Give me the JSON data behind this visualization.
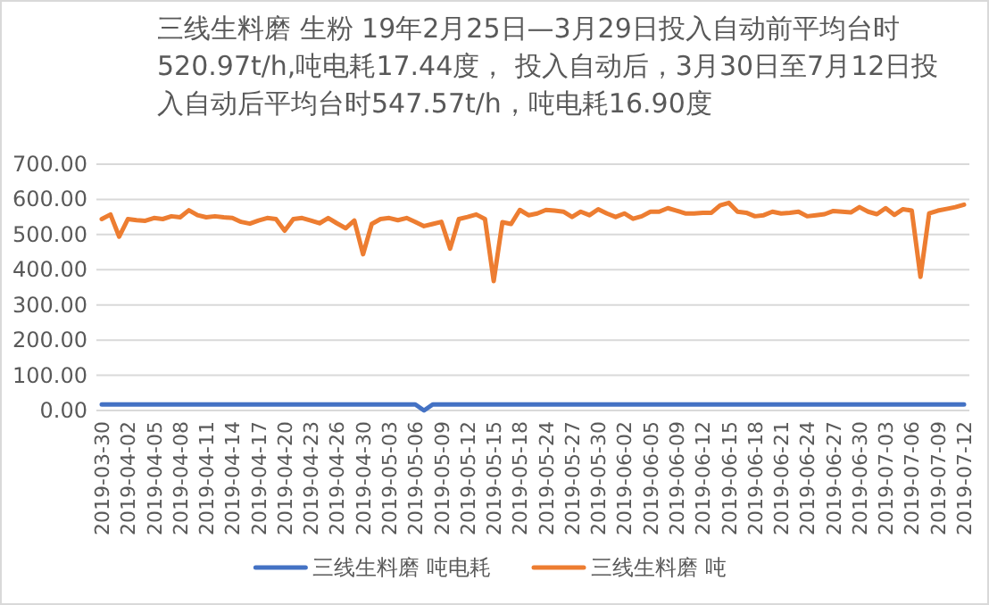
{
  "chart_data": {
    "type": "line",
    "title": "三线生料磨 生粉    19年2月25日—3月29日投入自动前平均台时520.97t/h,吨电耗17.44度，  投入自动后，3月30日至7月12日投入自动后平均台时547.57t/h，吨电耗16.90度",
    "categories": [
      "2019-03-30",
      null,
      null,
      "2019-04-02",
      null,
      null,
      "2019-04-05",
      null,
      null,
      "2019-04-08",
      null,
      null,
      "2019-04-11",
      null,
      null,
      "2019-04-14",
      null,
      null,
      "2019-04-17",
      null,
      null,
      "2019-04-20",
      null,
      null,
      "2019-04-23",
      null,
      null,
      "2019-04-26",
      null,
      null,
      "2019-04-30",
      null,
      null,
      "2019-05-03",
      null,
      null,
      "2019-05-06",
      null,
      null,
      "2019-05-09",
      null,
      null,
      "2019-05-12",
      null,
      null,
      "2019-05-15",
      null,
      null,
      "2019-05-18",
      null,
      null,
      "2019-05-24",
      null,
      null,
      "2019-05-27",
      null,
      null,
      "2019-05-30",
      null,
      null,
      "2019-06-02",
      null,
      null,
      "2019-06-05",
      null,
      null,
      "2019-06-09",
      null,
      null,
      "2019-06-12",
      null,
      null,
      "2019-06-15",
      null,
      null,
      "2019-06-18",
      null,
      null,
      "2019-06-21",
      null,
      null,
      "2019-06-24",
      null,
      null,
      "2019-06-27",
      null,
      null,
      "2019-06-30",
      null,
      null,
      "2019-07-03",
      null,
      null,
      "2019-07-06",
      null,
      null,
      "2019-07-09",
      null,
      null,
      "2019-07-12"
    ],
    "series": [
      {
        "name": "三线生料磨 吨电耗",
        "color": "#4472c4",
        "values": [
          17,
          17,
          17,
          17,
          17,
          17,
          17,
          17,
          17,
          17,
          17,
          17,
          17,
          17,
          17,
          17,
          17,
          17,
          17,
          17,
          17,
          17,
          17,
          17,
          17,
          17,
          17,
          17,
          17,
          17,
          17,
          17,
          17,
          17,
          17,
          17,
          17,
          0,
          17,
          17,
          17,
          17,
          17,
          17,
          17,
          17,
          17,
          17,
          17,
          17,
          17,
          17,
          17,
          17,
          17,
          17,
          17,
          17,
          17,
          17,
          17,
          17,
          17,
          17,
          17,
          17,
          17,
          17,
          17,
          17,
          17,
          17,
          17,
          17,
          17,
          17,
          17,
          17,
          17,
          17,
          17,
          17,
          17,
          17,
          17,
          17,
          17,
          17,
          17,
          17,
          17,
          17,
          17,
          17,
          17,
          17,
          17,
          17,
          17,
          17
        ]
      },
      {
        "name": "三线生料磨 吨",
        "color": "#ed7d31",
        "values": [
          544,
          557,
          494,
          544,
          541,
          539,
          547,
          544,
          552,
          549,
          569,
          555,
          549,
          552,
          549,
          547,
          536,
          531,
          540,
          547,
          544,
          511,
          544,
          547,
          540,
          532,
          547,
          532,
          518,
          540,
          444,
          530,
          544,
          547,
          541,
          547,
          536,
          524,
          530,
          536,
          460,
          544,
          550,
          557,
          544,
          368,
          535,
          530,
          570,
          555,
          560,
          570,
          568,
          565,
          550,
          565,
          555,
          572,
          560,
          550,
          560,
          545,
          552,
          565,
          565,
          575,
          568,
          560,
          560,
          562,
          562,
          583,
          590,
          565,
          562,
          552,
          555,
          565,
          560,
          562,
          565,
          552,
          555,
          558,
          567,
          565,
          563,
          578,
          565,
          558,
          575,
          556,
          572,
          568,
          380,
          560,
          568,
          573,
          578,
          585
        ]
      }
    ],
    "ylim": [
      0,
      700
    ],
    "yticks": [
      {
        "value": 0,
        "label": "0.00"
      },
      {
        "value": 100,
        "label": "100.00"
      },
      {
        "value": 200,
        "label": "200.00"
      },
      {
        "value": 300,
        "label": "300.00"
      },
      {
        "value": 400,
        "label": "400.00"
      },
      {
        "value": 500,
        "label": "500.00"
      },
      {
        "value": 600,
        "label": "600.00"
      },
      {
        "value": 700,
        "label": "700.00"
      }
    ],
    "grid": "y",
    "legend": "bottom",
    "marker": "none",
    "line_style": "solid"
  }
}
